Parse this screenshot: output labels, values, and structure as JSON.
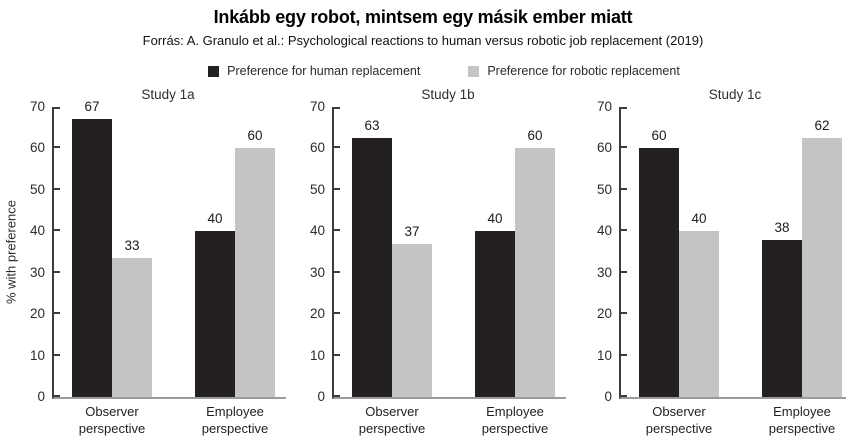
{
  "header": {
    "title": "Inkább egy robot, mintsem egy másik ember miatt",
    "subtitle": "Forrás: A. Granulo et al.: Psychological reactions to human versus robotic job replacement (2019)"
  },
  "legend": {
    "items": [
      {
        "label": "Preference for human replacement",
        "color": "#242021"
      },
      {
        "label": "Preference for robotic replacement",
        "color": "#c4c4c4"
      }
    ]
  },
  "chart_data": {
    "type": "bar",
    "ylabel": "% with preference",
    "ylim": [
      0,
      70
    ],
    "yticks": [
      0,
      10,
      20,
      30,
      40,
      50,
      60,
      70
    ],
    "categories": [
      "Observer perspective",
      "Employee perspective"
    ],
    "legend_position": "top-center",
    "grid": false,
    "colors": {
      "human": "#242021",
      "robotic": "#c4c4c4",
      "axis": "#3c3c3c",
      "baseline": "#9a9a9a"
    },
    "panels": [
      {
        "title": "Study 1a",
        "series": [
          {
            "name": "Preference for human replacement",
            "color": "#242021",
            "values": [
              67,
              40
            ]
          },
          {
            "name": "Preference for robotic replacement",
            "color": "#c4c4c4",
            "values": [
              33,
              60
            ]
          }
        ],
        "drawn_values": [
          [
            67,
            40
          ],
          [
            33.5,
            60
          ]
        ]
      },
      {
        "title": "Study 1b",
        "series": [
          {
            "name": "Preference for human replacement",
            "color": "#242021",
            "values": [
              63,
              40
            ]
          },
          {
            "name": "Preference for robotic replacement",
            "color": "#c4c4c4",
            "values": [
              37,
              60
            ]
          }
        ],
        "drawn_values": [
          [
            62.5,
            40
          ],
          [
            37,
            60
          ]
        ]
      },
      {
        "title": "Study 1c",
        "series": [
          {
            "name": "Preference for human replacement",
            "color": "#242021",
            "values": [
              60,
              38
            ]
          },
          {
            "name": "Preference for robotic replacement",
            "color": "#c4c4c4",
            "values": [
              40,
              62
            ]
          }
        ],
        "drawn_values": [
          [
            60,
            38
          ],
          [
            40,
            62.5
          ]
        ]
      }
    ]
  }
}
